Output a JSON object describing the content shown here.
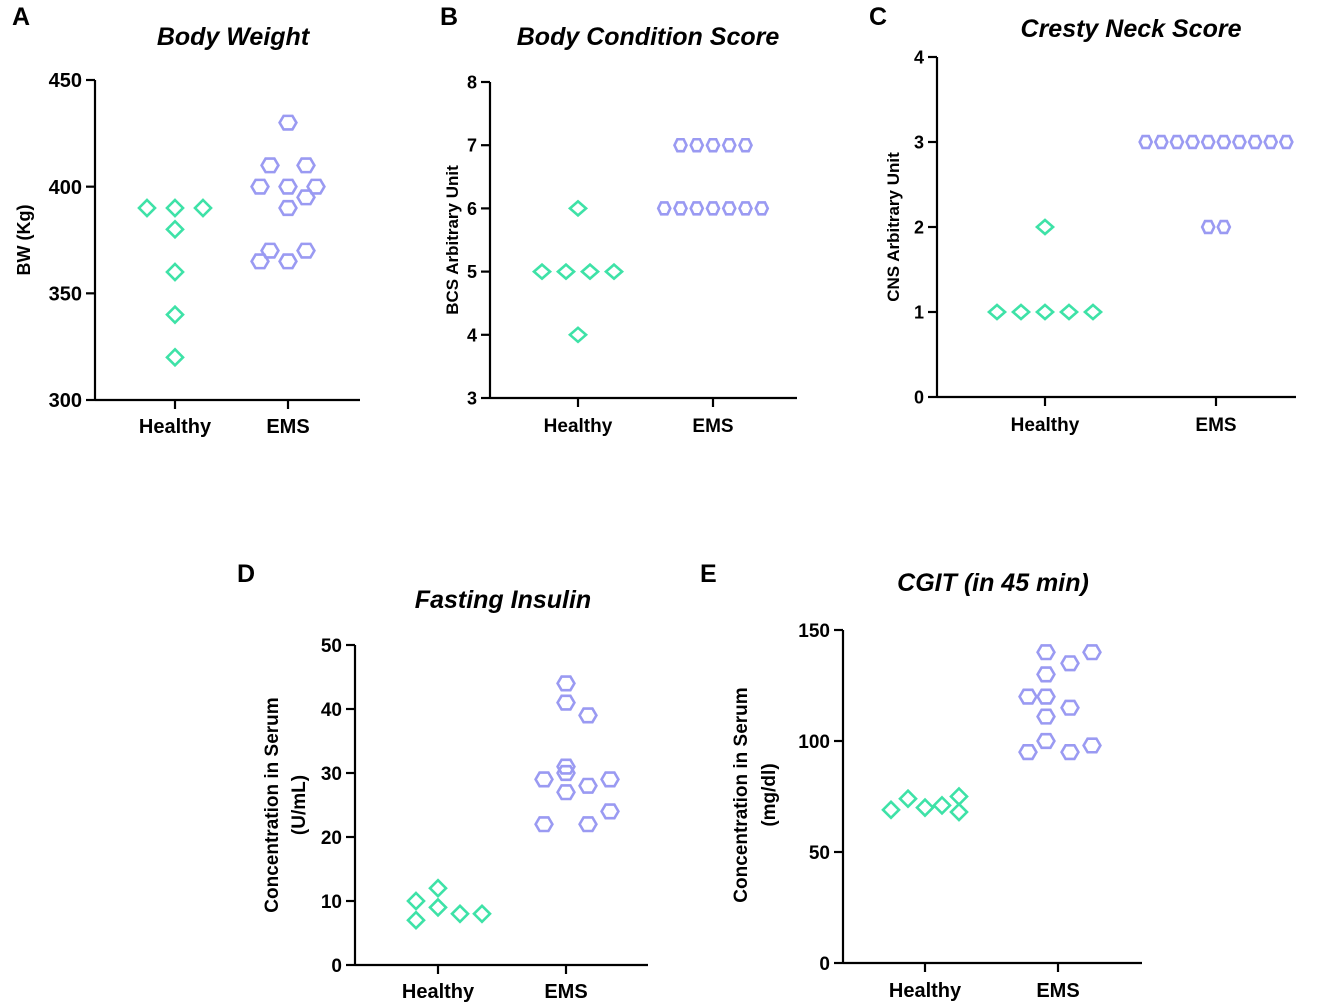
{
  "colors": {
    "healthy": "#3ee2a7",
    "ems": "#9a9af2",
    "axis": "#000000"
  },
  "chart_data": [
    {
      "panel": "A",
      "type": "scatter",
      "title": "Body Weight",
      "xlabel": "",
      "ylabel": [
        "BW (Kg)"
      ],
      "ylim": [
        300,
        450
      ],
      "yticks": [
        "300",
        "350",
        "400",
        "450"
      ],
      "categories": [
        "Healthy",
        "EMS"
      ],
      "series": [
        {
          "name": "Healthy",
          "marker": "diamond",
          "values": [
            390,
            390,
            390,
            380,
            360,
            340,
            320
          ]
        },
        {
          "name": "EMS",
          "marker": "hexagon",
          "values": [
            430,
            410,
            410,
            400,
            400,
            400,
            395,
            390,
            370,
            370,
            365,
            365
          ]
        }
      ]
    },
    {
      "panel": "B",
      "type": "scatter",
      "title": "Body Condition Score",
      "xlabel": "",
      "ylabel": [
        "BCS Arbitrary Unit"
      ],
      "ylim": [
        3,
        8
      ],
      "yticks": [
        "3",
        "4",
        "5",
        "6",
        "7",
        "8"
      ],
      "categories": [
        "Healthy",
        "EMS"
      ],
      "series": [
        {
          "name": "Healthy",
          "marker": "diamond",
          "values": [
            6,
            5,
            5,
            5,
            5,
            4
          ]
        },
        {
          "name": "EMS",
          "marker": "hexagon",
          "values": [
            7,
            7,
            7,
            7,
            7,
            6,
            6,
            6,
            6,
            6,
            6,
            6
          ]
        }
      ]
    },
    {
      "panel": "C",
      "type": "scatter",
      "title": "Cresty Neck Score",
      "xlabel": "",
      "ylabel": [
        "CNS Arbitrary Unit"
      ],
      "ylim": [
        0,
        4
      ],
      "yticks": [
        "0",
        "1",
        "2",
        "3",
        "4"
      ],
      "categories": [
        "Healthy",
        "EMS"
      ],
      "series": [
        {
          "name": "Healthy",
          "marker": "diamond",
          "values": [
            2,
            1,
            1,
            1,
            1,
            1
          ]
        },
        {
          "name": "EMS",
          "marker": "hexagon",
          "values": [
            3,
            3,
            3,
            3,
            3,
            3,
            3,
            3,
            3,
            3,
            2,
            2
          ]
        }
      ]
    },
    {
      "panel": "D",
      "type": "scatter",
      "title": "Fasting Insulin",
      "xlabel": "",
      "ylabel": [
        "Concentration in  Serum",
        "(U/mL)"
      ],
      "ylim": [
        0,
        50
      ],
      "yticks": [
        "0",
        "10",
        "20",
        "30",
        "40",
        "50"
      ],
      "categories": [
        "Healthy",
        "EMS"
      ],
      "series": [
        {
          "name": "Healthy",
          "marker": "diamond",
          "values": [
            12,
            10,
            9,
            8,
            8,
            7
          ]
        },
        {
          "name": "EMS",
          "marker": "hexagon",
          "values": [
            44,
            41,
            39,
            31,
            30,
            29,
            29,
            28,
            27,
            24,
            22,
            22
          ]
        }
      ]
    },
    {
      "panel": "E",
      "type": "scatter",
      "title": "CGIT (in 45 min)",
      "xlabel": "",
      "ylabel": [
        "Concentration in Serum",
        "(mg/dl)"
      ],
      "ylim": [
        0,
        150
      ],
      "yticks": [
        "0",
        "50",
        "100",
        "150"
      ],
      "categories": [
        "Healthy",
        "EMS"
      ],
      "series": [
        {
          "name": "Healthy",
          "marker": "diamond",
          "values": [
            75,
            74,
            71,
            70,
            69,
            68
          ]
        },
        {
          "name": "EMS",
          "marker": "hexagon",
          "values": [
            140,
            140,
            135,
            130,
            120,
            120,
            115,
            111,
            100,
            98,
            95,
            95
          ]
        }
      ]
    }
  ]
}
